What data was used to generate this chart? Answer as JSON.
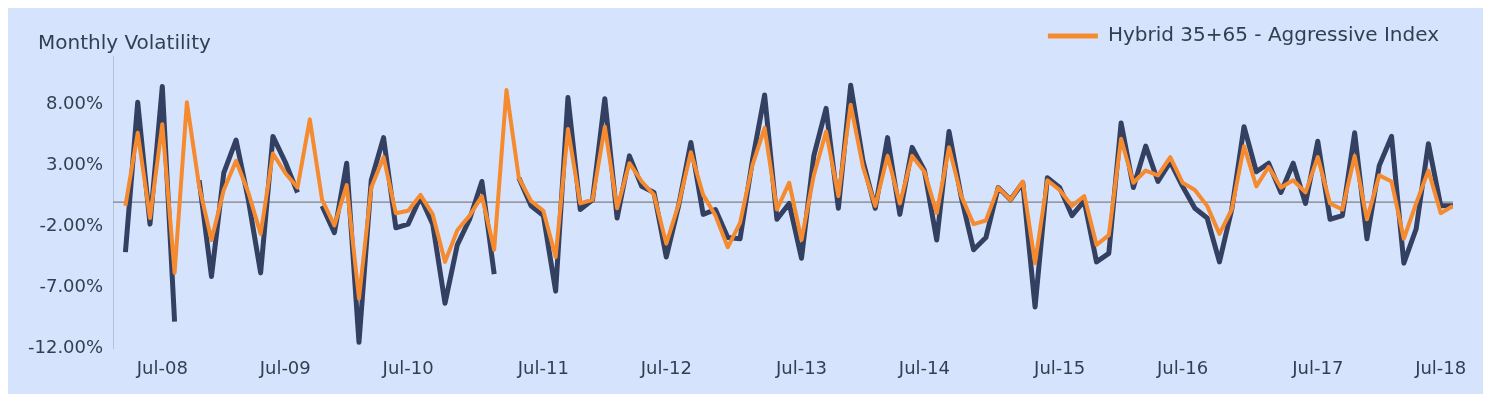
{
  "chart_data": {
    "type": "line",
    "title": "Monthly Volatility",
    "categories": [
      null,
      null,
      null,
      null,
      "Jul-08",
      null,
      null,
      null,
      null,
      null,
      null,
      null,
      null,
      null,
      "Jul-09",
      null,
      null,
      null,
      null,
      null,
      null,
      null,
      null,
      null,
      "Jul-10",
      null,
      null,
      null,
      null,
      null,
      null,
      null,
      null,
      null,
      null,
      "Jul-11",
      null,
      null,
      null,
      null,
      null,
      null,
      null,
      null,
      null,
      "Jul-12",
      null,
      null,
      null,
      null,
      null,
      null,
      null,
      null,
      null,
      null,
      "Jul-13",
      null,
      null,
      null,
      null,
      null,
      null,
      null,
      null,
      null,
      "Jul-14",
      null,
      null,
      null,
      null,
      null,
      null,
      null,
      null,
      null,
      null,
      "Jul-15",
      null,
      null,
      null,
      null,
      null,
      null,
      null,
      null,
      null,
      "Jul-16",
      null,
      null,
      null,
      null,
      null,
      null,
      null,
      null,
      null,
      null,
      "Jul-17",
      null,
      null,
      null,
      null,
      null,
      null,
      null,
      null,
      null,
      "Jul-18",
      null
    ],
    "series": [
      {
        "color": "#344061",
        "values": [
          null,
          -4.1,
          8.2,
          -1.8,
          9.5,
          -9.8,
          null,
          1.8,
          -6.1,
          2.4,
          5.1,
          0.2,
          -5.8,
          5.4,
          3.3,
          0.8,
          null,
          -0.3,
          -2.5,
          3.2,
          -11.5,
          1.8,
          5.3,
          -2.1,
          -1.8,
          0.4,
          -1.8,
          -8.3,
          -3.5,
          -1.4,
          1.7,
          -5.9,
          null,
          2,
          -0.3,
          -1.1,
          -7.3,
          8.6,
          -0.6,
          0.2,
          8.5,
          -1.3,
          3.8,
          1.3,
          0.8,
          -4.5,
          -0.3,
          4.9,
          -1,
          -0.6,
          -2.9,
          -3,
          3.4,
          8.8,
          -1.4,
          -0.1,
          -4.6,
          3.8,
          7.7,
          -0.5,
          9.6,
          3.4,
          -0.5,
          5.3,
          -1,
          4.5,
          2.6,
          -3.1,
          5.8,
          0.4,
          -3.9,
          -2.9,
          1.2,
          0.2,
          1.6,
          -8.6,
          2,
          1.2,
          -1.1,
          0.1,
          -4.9,
          -4.2,
          6.5,
          1.2,
          4.6,
          1.7,
          3.3,
          1.3,
          -0.5,
          -1.3,
          -4.9,
          -0.6,
          6.2,
          2.5,
          3.2,
          0.8,
          3.2,
          -0.1,
          5,
          -1.4,
          -1.1,
          5.7,
          -3,
          3,
          5.4,
          -5,
          -2.2,
          4.8,
          -0.3,
          -0.3
        ]
      },
      {
        "name": "Hybrid 35+65 - Aggressive Index",
        "color": "#f58a2f",
        "values": [
          null,
          -0.3,
          5.7,
          -1.3,
          6.4,
          -5.8,
          8.2,
          1.3,
          -3.1,
          1,
          3.4,
          0.8,
          -2.6,
          4,
          2.4,
          1.2,
          6.8,
          0.2,
          -1.9,
          1.4,
          -7.9,
          1.2,
          3.7,
          -0.9,
          -0.7,
          0.6,
          -1,
          -4.9,
          -2.3,
          -1.1,
          0.5,
          -3.9,
          9.2,
          2,
          0.1,
          -0.7,
          -4.5,
          6,
          -0.1,
          0.2,
          6.2,
          -0.5,
          3.2,
          1.7,
          0.6,
          -3.4,
          -0.2,
          4.1,
          0.6,
          -1.1,
          -3.7,
          -1.7,
          3,
          6.1,
          -0.6,
          1.6,
          -3.1,
          2.2,
          5.8,
          0.5,
          8,
          2.9,
          -0.3,
          3.8,
          -0.1,
          3.8,
          2.5,
          -0.9,
          4.5,
          0.5,
          -1.8,
          -1.5,
          1.2,
          0.2,
          1.7,
          -5,
          1.8,
          1,
          -0.3,
          0.5,
          -3.5,
          -2.7,
          5.2,
          1.6,
          2.6,
          2.2,
          3.7,
          1.6,
          1,
          -0.3,
          -2.6,
          -0.6,
          4.6,
          1.3,
          2.9,
          1.2,
          1.8,
          0.8,
          3.7,
          -0.1,
          -0.6,
          3.8,
          -1.4,
          2.2,
          1.7,
          -3,
          -0.1,
          2.6,
          -0.9,
          -0.3
        ]
      }
    ],
    "ylim": [
      -12,
      12
    ],
    "yticks": [
      {
        "value": -12,
        "label": "-12.00%"
      },
      {
        "value": -7,
        "label": "-7.00%"
      },
      {
        "value": -2,
        "label": "-2.00%"
      },
      {
        "value": 3,
        "label": "3.00%"
      },
      {
        "value": 8,
        "label": "8.00%"
      }
    ],
    "ref_lines": [
      {
        "axis": "y",
        "value": 0,
        "color": "#808080"
      }
    ],
    "grid": false,
    "legend": "top right",
    "marker": "none",
    "line_style": "solid"
  }
}
